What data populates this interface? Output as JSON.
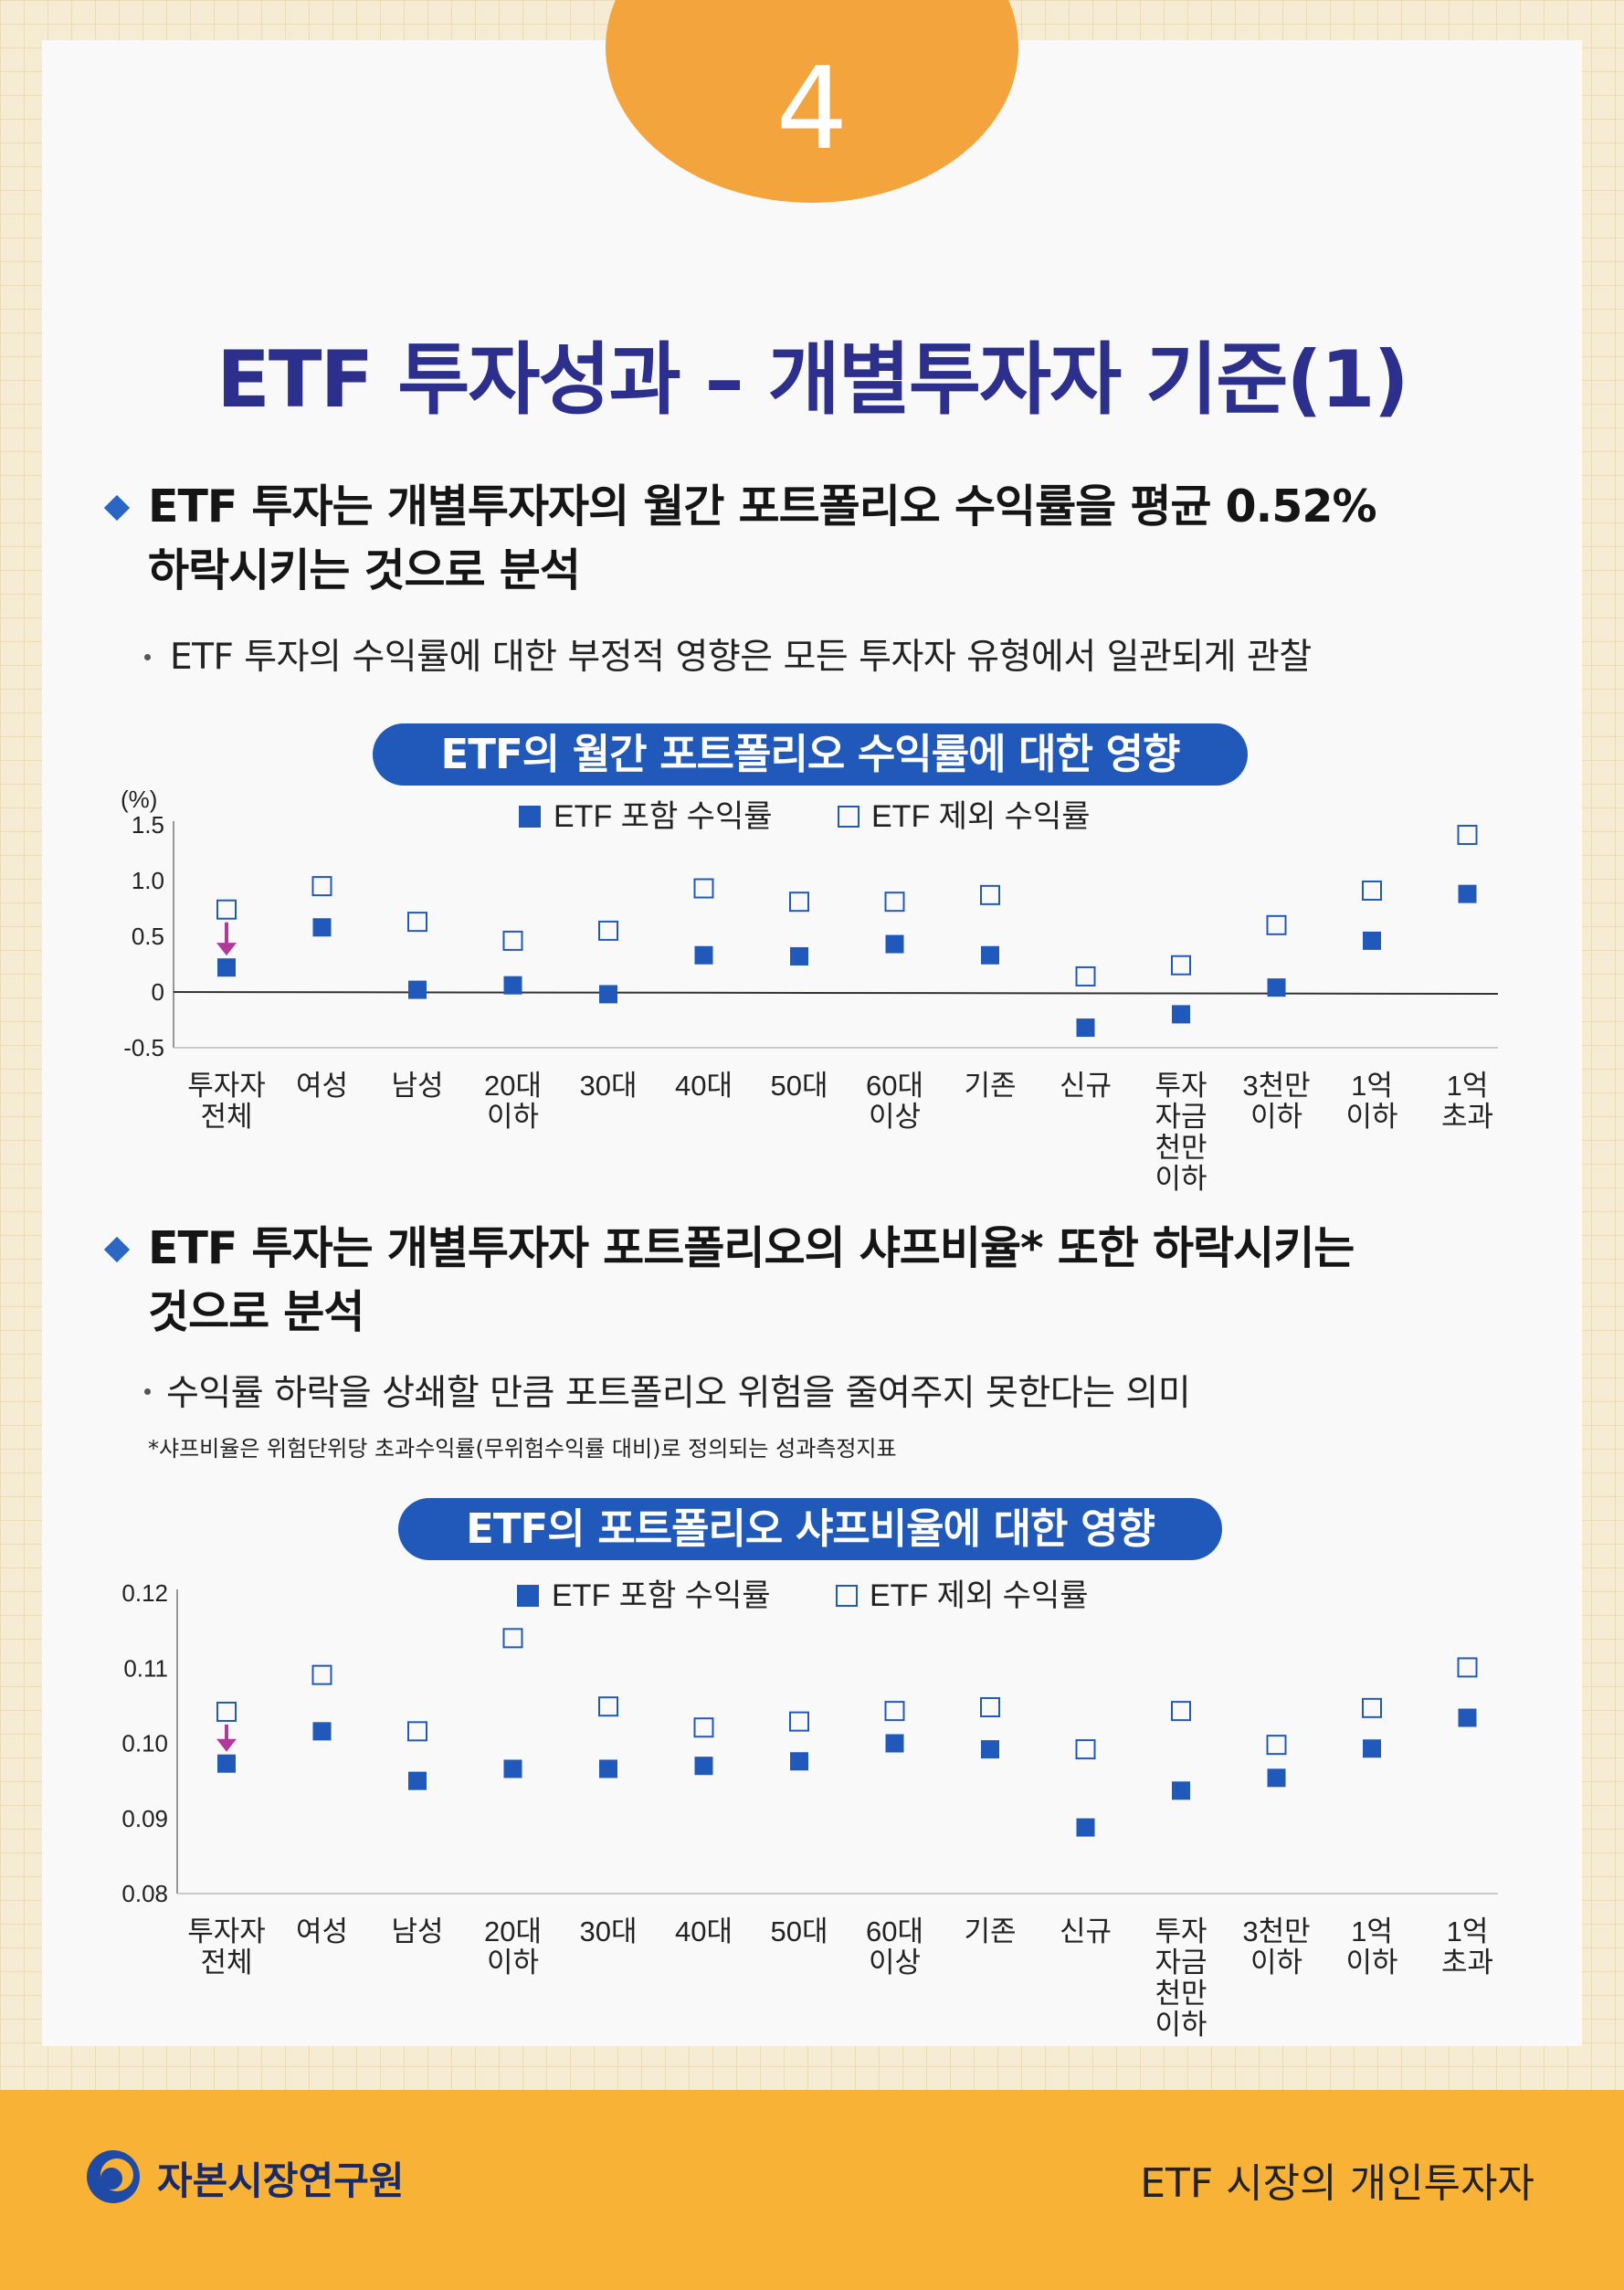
{
  "badge_number": "4",
  "title": "ETF 투자성과 – 개별투자자 기준(1)",
  "section1": {
    "heading_line1": "ETF 투자는 개별투자자의 월간 포트폴리오 수익률을 평균 0.52%",
    "heading_line2": "하락시키는 것으로 분석",
    "bullet": "ETF 투자의 수익률에 대한 부정적 영향은 모든 투자자 유형에서 일관되게 관찰"
  },
  "section2": {
    "heading_line1": "ETF 투자는 개별투자자 포트폴리오의 샤프비율* 또한 하락시키는",
    "heading_line2": "것으로 분석",
    "bullet": "수익률 하락을 상쇄할 만큼 포트폴리오 위험을 줄여주지 못한다는 의미",
    "note": "*샤프비율은 위험단위당 초과수익률(무위험수익률 대비)로 정의되는 성과측정지표"
  },
  "chart_data": [
    {
      "type": "scatter",
      "title": "ETF의 월간 포트폴리오 수익률에 대한 영향",
      "ylabel": "(%)",
      "ylim": [
        -0.5,
        1.5
      ],
      "yticks": [
        "1.5",
        "1.0",
        "0.5",
        "0",
        "-0.5"
      ],
      "ytick_values": [
        1.5,
        1.0,
        0.5,
        0,
        -0.5
      ],
      "categories": [
        [
          "투자자",
          "전체"
        ],
        [
          "여성"
        ],
        [
          "남성"
        ],
        [
          "20대",
          "이하"
        ],
        [
          "30대"
        ],
        [
          "40대"
        ],
        [
          "50대"
        ],
        [
          "60대",
          "이상"
        ],
        [
          "기존"
        ],
        [
          "신규"
        ],
        [
          "투자",
          "자금",
          "천만",
          "이하"
        ],
        [
          "3천만",
          "이하"
        ],
        [
          "1억",
          "이하"
        ],
        [
          "1억",
          "초과"
        ]
      ],
      "legend": "top-center",
      "series": [
        {
          "name": "ETF 포함 수익률",
          "marker": "filled-square",
          "color": "#2159ba",
          "values": [
            0.22,
            0.58,
            0.02,
            0.06,
            -0.02,
            0.33,
            0.32,
            0.43,
            0.33,
            -0.32,
            -0.2,
            0.04,
            0.46,
            0.88
          ]
        },
        {
          "name": "ETF 제외 수익률",
          "marker": "hollow-square",
          "color": "#2159ba",
          "values": [
            0.74,
            0.95,
            0.63,
            0.46,
            0.55,
            0.93,
            0.81,
            0.81,
            0.87,
            0.14,
            0.24,
            0.6,
            0.91,
            1.41
          ]
        }
      ],
      "arrow_category_index": 0,
      "arrow_color": "#b03a9a"
    },
    {
      "type": "scatter",
      "title": "ETF의 포트폴리오 샤프비율에 대한 영향",
      "ylim": [
        0.08,
        0.12
      ],
      "yticks": [
        "0.12",
        "0.11",
        "0.10",
        "0.09",
        "0.08"
      ],
      "ytick_values": [
        0.12,
        0.11,
        0.1,
        0.09,
        0.08
      ],
      "categories": [
        [
          "투자자",
          "전체"
        ],
        [
          "여성"
        ],
        [
          "남성"
        ],
        [
          "20대",
          "이하"
        ],
        [
          "30대"
        ],
        [
          "40대"
        ],
        [
          "50대"
        ],
        [
          "60대",
          "이상"
        ],
        [
          "기존"
        ],
        [
          "신규"
        ],
        [
          "투자",
          "자금",
          "천만",
          "이하"
        ],
        [
          "3천만",
          "이하"
        ],
        [
          "1억",
          "이하"
        ],
        [
          "1억",
          "초과"
        ]
      ],
      "legend": "top-center",
      "series": [
        {
          "name": "ETF 포함 수익률",
          "marker": "filled-square",
          "color": "#2159ba",
          "values": [
            0.0973,
            0.1016,
            0.095,
            0.0966,
            0.0966,
            0.097,
            0.0976,
            0.1,
            0.0992,
            0.0888,
            0.0937,
            0.0954,
            0.0993,
            0.1034
          ]
        },
        {
          "name": "ETF 제외 수익률",
          "marker": "hollow-square",
          "color": "#2159ba",
          "values": [
            0.1042,
            0.1091,
            0.1016,
            0.114,
            0.1049,
            0.1021,
            0.1029,
            0.1043,
            0.1048,
            0.0992,
            0.1043,
            0.0998,
            0.1047,
            0.1101
          ]
        }
      ],
      "arrow_category_index": 0,
      "arrow_color": "#b03a9a"
    }
  ],
  "footer": {
    "org_name": "자본시장연구원",
    "publication_title": "ETF 시장의 개인투자자"
  },
  "colors": {
    "badge": "#f4a43c",
    "title": "#2c2f8c",
    "pill": "#2159ba",
    "footer": "#f8b337",
    "marker": "#2159ba",
    "arrow": "#b03a9a"
  }
}
